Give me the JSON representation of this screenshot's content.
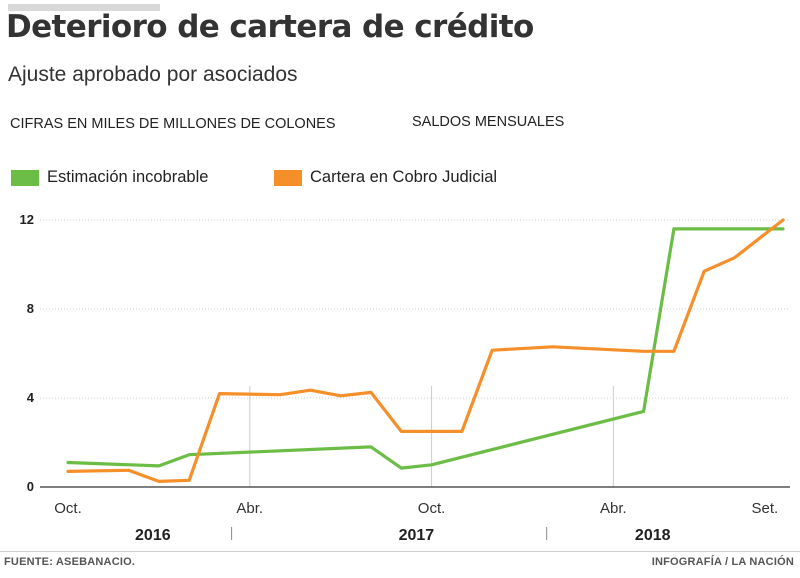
{
  "header": {
    "title": "Deterioro de cartera de crédito",
    "subtitle": "Ajuste aprobado por asociados",
    "units": "CIFRAS EN MILES DE MILLONES DE COLONES",
    "mode": "SALDOS MENSUALES"
  },
  "footer": {
    "source": "FUENTE: ASEBANACIO.",
    "credit": "INFOGRAFÍA / LA NACIÓN"
  },
  "colors": {
    "green": "#6cbd45",
    "orange": "#f58f2a",
    "grid": "#cccccc",
    "axis": "#555555"
  },
  "chart_data": {
    "type": "line",
    "title": "Deterioro de cartera de crédito",
    "subtitle": "Ajuste aprobado por asociados",
    "ylabel": "CIFRAS EN MILES DE MILLONES DE COLONES",
    "ylim": [
      0,
      12
    ],
    "yticks": [
      0,
      4,
      8,
      12
    ],
    "xlim": [
      0,
      23.6
    ],
    "xticks": [
      {
        "x": 0,
        "label": "Oct."
      },
      {
        "x": 6,
        "label": "Abr."
      },
      {
        "x": 12,
        "label": "Oct."
      },
      {
        "x": 18,
        "label": "Abr."
      },
      {
        "x": 23,
        "label": "Set."
      }
    ],
    "years": [
      {
        "x": 2.8,
        "label": "2016"
      },
      {
        "x": 11.5,
        "label": "2017"
      },
      {
        "x": 19.3,
        "label": "2018"
      }
    ],
    "year_separators": [
      5.4,
      15.8
    ],
    "gridlines_x": [
      6,
      12,
      18
    ],
    "legend_position": "top-left",
    "series": [
      {
        "name": "Estimación incobrable",
        "color_key": "green",
        "x": [
          0,
          3,
          4,
          10,
          11,
          12,
          19,
          20,
          23.6
        ],
        "y": [
          1.1,
          0.95,
          1.45,
          1.8,
          0.85,
          1.0,
          3.4,
          11.6,
          11.6
        ]
      },
      {
        "name": "Cartera en Cobro Judicial",
        "color_key": "orange",
        "x": [
          0,
          2,
          3,
          4,
          5,
          7,
          8,
          9,
          10,
          11,
          13,
          14,
          16,
          19,
          20,
          21,
          22,
          23.6
        ],
        "y": [
          0.7,
          0.75,
          0.25,
          0.3,
          4.2,
          4.15,
          4.35,
          4.1,
          4.25,
          2.5,
          2.5,
          6.15,
          6.3,
          6.1,
          6.1,
          9.7,
          10.3,
          12.0
        ]
      }
    ]
  }
}
